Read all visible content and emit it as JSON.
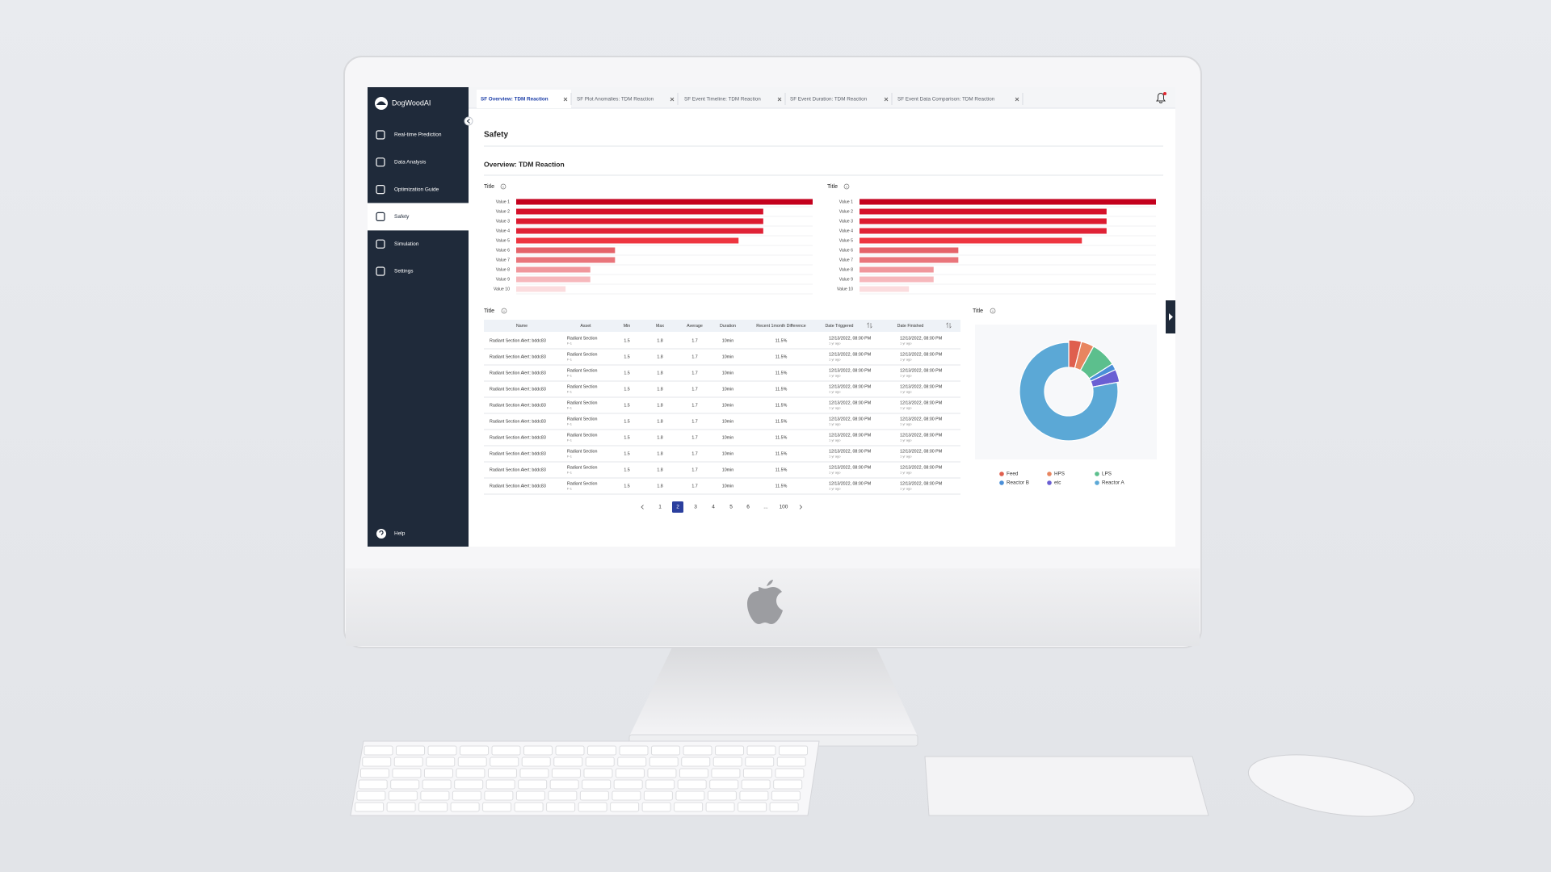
{
  "sidebar": {
    "brand": "DogWoodAI",
    "menu": [
      "Real-time Prediction",
      "Data Analysis",
      "Optimization Guide",
      "Safety",
      "Simulation",
      "Settings"
    ],
    "active": 3,
    "help": "Help"
  },
  "tabs": [
    "SF Overview: TDM Reaction",
    "SF Plot Anomalies: TDM Reaction",
    "SF Event Timeline: TDM Reaction",
    "SF Event Duration: TDM Reaction",
    "SF Event Data Comparison: TDM Reaction"
  ],
  "header": {
    "title": "Safety",
    "section": "Overview: TDM Reaction"
  },
  "chart_data": [
    {
      "type": "bar",
      "orientation": "horizontal",
      "title": "Title",
      "categories": [
        "Value 1",
        "Value 2",
        "Value 3",
        "Value 4",
        "Value 5",
        "Value 6",
        "Value 7",
        "Value 8",
        "Value 9",
        "Value 10"
      ],
      "values": [
        12,
        10,
        10,
        10,
        9,
        4,
        4,
        3,
        3,
        2
      ],
      "colors": [
        "#c4001d",
        "#d5102a",
        "#dc1a30",
        "#e02236",
        "#ee3540",
        "#e5636a",
        "#e9757b",
        "#f0979c",
        "#f6b8bc",
        "#fbdcde"
      ],
      "xlim": [
        0,
        12
      ]
    },
    {
      "type": "bar",
      "orientation": "horizontal",
      "title": "Title",
      "categories": [
        "Value 1",
        "Value 2",
        "Value 3",
        "Value 4",
        "Value 5",
        "Value 6",
        "Value 7",
        "Value 8",
        "Value 9",
        "Value 10"
      ],
      "values": [
        12,
        10,
        10,
        10,
        9,
        4,
        4,
        3,
        3,
        2
      ],
      "colors": [
        "#c4001d",
        "#d5102a",
        "#dc1a30",
        "#e02236",
        "#ee3540",
        "#e5636a",
        "#e9757b",
        "#f0979c",
        "#f6b8bc",
        "#fbdcde"
      ],
      "xlim": [
        0,
        12
      ]
    },
    {
      "type": "pie",
      "donut": true,
      "title": "Title",
      "categories": [
        "Feed",
        "HPS",
        "LPS",
        "Reactor B",
        "etc",
        "Reactor A"
      ],
      "values": [
        4,
        4,
        8,
        2,
        4,
        78
      ],
      "colors": [
        "#df5f4e",
        "#e8855f",
        "#5cbf8d",
        "#4a8fd8",
        "#6a5fd3",
        "#5ba8d6"
      ],
      "legend": "bottom"
    }
  ],
  "table": {
    "title": "Title",
    "columns": [
      "Name",
      "Asset",
      "Min",
      "Max",
      "Average",
      "Duration",
      "Recent 1month Difference",
      "Date Triggered",
      "Date Finished"
    ],
    "rows": [
      {
        "name": "Radiant Section Alert: bddc83",
        "asset": "Radiant Section",
        "asset_sub": "F-1",
        "min": 1.5,
        "max": 1.8,
        "average": 1.7,
        "duration": "10min",
        "difference": "11.5%",
        "triggered": "12/13/2022, 08:00 PM",
        "triggered_ago": "1 yr ago",
        "finished": "12/13/2022, 08:00 PM",
        "finished_ago": "1 yr ago"
      },
      {
        "name": "Radiant Section Alert: bddc83",
        "asset": "Radiant Section",
        "asset_sub": "F-1",
        "min": 1.5,
        "max": 1.8,
        "average": 1.7,
        "duration": "10min",
        "difference": "11.5%",
        "triggered": "12/13/2022, 08:00 PM",
        "triggered_ago": "1 yr ago",
        "finished": "12/13/2022, 08:00 PM",
        "finished_ago": "1 yr ago"
      },
      {
        "name": "Radiant Section Alert: bddc83",
        "asset": "Radiant Section",
        "asset_sub": "F-1",
        "min": 1.5,
        "max": 1.8,
        "average": 1.7,
        "duration": "10min",
        "difference": "11.5%",
        "triggered": "12/13/2022, 08:00 PM",
        "triggered_ago": "1 yr ago",
        "finished": "12/13/2022, 08:00 PM",
        "finished_ago": "1 yr ago"
      },
      {
        "name": "Radiant Section Alert: bddc83",
        "asset": "Radiant Section",
        "asset_sub": "F-1",
        "min": 1.5,
        "max": 1.8,
        "average": 1.7,
        "duration": "10min",
        "difference": "11.5%",
        "triggered": "12/13/2022, 08:00 PM",
        "triggered_ago": "1 yr ago",
        "finished": "12/13/2022, 08:00 PM",
        "finished_ago": "1 yr ago"
      },
      {
        "name": "Radiant Section Alert: bddc83",
        "asset": "Radiant Section",
        "asset_sub": "F-1",
        "min": 1.5,
        "max": 1.8,
        "average": 1.7,
        "duration": "10min",
        "difference": "11.5%",
        "triggered": "12/13/2022, 08:00 PM",
        "triggered_ago": "1 yr ago",
        "finished": "12/13/2022, 08:00 PM",
        "finished_ago": "1 yr ago"
      },
      {
        "name": "Radiant Section Alert: bddc83",
        "asset": "Radiant Section",
        "asset_sub": "F-1",
        "min": 1.5,
        "max": 1.8,
        "average": 1.7,
        "duration": "10min",
        "difference": "11.5%",
        "triggered": "12/13/2022, 08:00 PM",
        "triggered_ago": "1 yr ago",
        "finished": "12/13/2022, 08:00 PM",
        "finished_ago": "1 yr ago"
      },
      {
        "name": "Radiant Section Alert: bddc83",
        "asset": "Radiant Section",
        "asset_sub": "F-1",
        "min": 1.5,
        "max": 1.8,
        "average": 1.7,
        "duration": "10min",
        "difference": "11.5%",
        "triggered": "12/13/2022, 08:00 PM",
        "triggered_ago": "1 yr ago",
        "finished": "12/13/2022, 08:00 PM",
        "finished_ago": "1 yr ago"
      },
      {
        "name": "Radiant Section Alert: bddc83",
        "asset": "Radiant Section",
        "asset_sub": "F-1",
        "min": 1.5,
        "max": 1.8,
        "average": 1.7,
        "duration": "10min",
        "difference": "11.5%",
        "triggered": "12/13/2022, 08:00 PM",
        "triggered_ago": "1 yr ago",
        "finished": "12/13/2022, 08:00 PM",
        "finished_ago": "1 yr ago"
      },
      {
        "name": "Radiant Section Alert: bddc83",
        "asset": "Radiant Section",
        "asset_sub": "F-1",
        "min": 1.5,
        "max": 1.8,
        "average": 1.7,
        "duration": "10min",
        "difference": "11.5%",
        "triggered": "12/13/2022, 08:00 PM",
        "triggered_ago": "1 yr ago",
        "finished": "12/13/2022, 08:00 PM",
        "finished_ago": "1 yr ago"
      },
      {
        "name": "Radiant Section Alert: bddc83",
        "asset": "Radiant Section",
        "asset_sub": "F-1",
        "min": 1.5,
        "max": 1.8,
        "average": 1.7,
        "duration": "10min",
        "difference": "11.5%",
        "triggered": "12/13/2022, 08:00 PM",
        "triggered_ago": "1 yr ago",
        "finished": "12/13/2022, 08:00 PM",
        "finished_ago": "1 yr ago"
      }
    ]
  },
  "pagination": {
    "pages": [
      "1",
      "2",
      "3",
      "4",
      "5",
      "6",
      "...",
      "100"
    ],
    "active": 1
  }
}
